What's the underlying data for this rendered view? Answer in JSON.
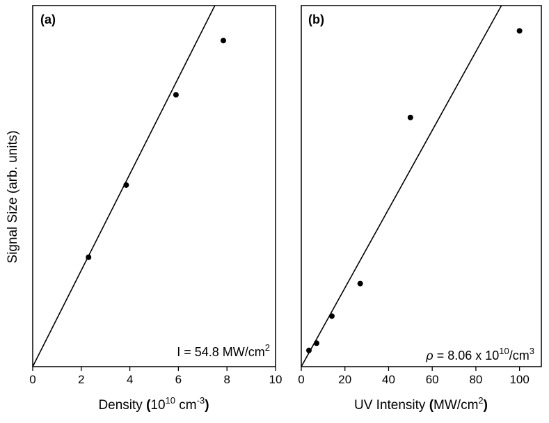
{
  "chart_data": [
    {
      "type": "scatter",
      "panel_label": "(a)",
      "ylabel": "Signal Size (arb. units)",
      "xlabel_text": "Density ",
      "xlabel_units_open": "(",
      "xlabel_units_base": "10",
      "xlabel_units_exp": "10",
      "xlabel_units_mid": " cm",
      "xlabel_units_exp2": "-3",
      "xlabel_units_close": ")",
      "xlim": [
        0,
        10
      ],
      "ylim": [
        0,
        10
      ],
      "x_ticks": [
        "0",
        "2",
        "4",
        "6",
        "8",
        "10"
      ],
      "x_tick_values": [
        0,
        2,
        4,
        6,
        8,
        10
      ],
      "points": [
        {
          "x": 2.3,
          "y": 3.03
        },
        {
          "x": 3.85,
          "y": 5.03
        },
        {
          "x": 5.9,
          "y": 7.53
        },
        {
          "x": 7.85,
          "y": 9.03
        }
      ],
      "fit_line": {
        "x": [
          0,
          7.5
        ],
        "y": [
          0,
          10
        ]
      },
      "annotation_main": "I = 54.8 MW/cm",
      "annotation_sup": "2",
      "y_ticks_shown": false,
      "grid": false
    },
    {
      "type": "scatter",
      "panel_label": "(b)",
      "xlabel_text": "UV Intensity ",
      "xlabel_units_open": "(",
      "xlabel_units_mid": "MW/cm",
      "xlabel_units_exp": "2",
      "xlabel_units_close": ")",
      "xlim": [
        0,
        110
      ],
      "ylim": [
        0,
        10
      ],
      "x_ticks": [
        "0",
        "20",
        "40",
        "60",
        "80",
        "100"
      ],
      "x_tick_values": [
        0,
        20,
        40,
        60,
        80,
        100
      ],
      "points": [
        {
          "x": 3.5,
          "y": 0.45
        },
        {
          "x": 7,
          "y": 0.65
        },
        {
          "x": 14,
          "y": 1.4
        },
        {
          "x": 27,
          "y": 2.3
        },
        {
          "x": 50,
          "y": 6.9
        },
        {
          "x": 100,
          "y": 9.3
        }
      ],
      "fit_line": {
        "x": [
          0,
          91.7
        ],
        "y": [
          0,
          10
        ]
      },
      "annotation_prefix": "ρ",
      "annotation_main": " = 8.06 x 10",
      "annotation_sup": "10",
      "annotation_suffix": "/cm",
      "annotation_sup2": "3",
      "y_ticks_shown": false,
      "grid": false
    }
  ]
}
